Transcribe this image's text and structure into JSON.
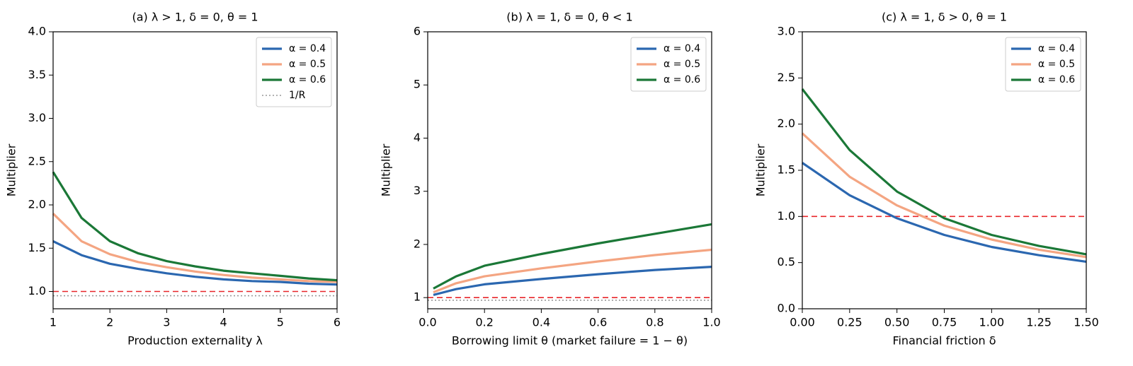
{
  "chart_data": [
    {
      "type": "line",
      "title": "(a) λ > 1, δ = 0, θ = 1",
      "x_label": "Production externality λ",
      "y_label": "Multiplier",
      "x": [
        1,
        1.5,
        2,
        2.5,
        3,
        3.5,
        4,
        4.5,
        5,
        5.5,
        6
      ],
      "series": [
        {
          "name": "α = 0.4",
          "color": "#2b67b0",
          "values": [
            1.58,
            1.42,
            1.32,
            1.26,
            1.21,
            1.17,
            1.14,
            1.12,
            1.11,
            1.09,
            1.08
          ]
        },
        {
          "name": "α = 0.5",
          "color": "#f4a582",
          "values": [
            1.9,
            1.58,
            1.43,
            1.34,
            1.28,
            1.23,
            1.19,
            1.16,
            1.14,
            1.12,
            1.11
          ]
        },
        {
          "name": "α = 0.6",
          "color": "#1b7837",
          "values": [
            2.38,
            1.85,
            1.58,
            1.44,
            1.35,
            1.29,
            1.24,
            1.21,
            1.18,
            1.15,
            1.13
          ]
        },
        {
          "name": "1/R",
          "color": "#999999",
          "style": "dotted",
          "values": [
            0.95,
            0.95,
            0.95,
            0.95,
            0.95,
            0.95,
            0.95,
            0.95,
            0.95,
            0.95,
            0.95
          ]
        }
      ],
      "hlines": [
        {
          "y": 1,
          "color": "#e8262a",
          "style": "dashed"
        }
      ],
      "xlim": [
        1,
        6
      ],
      "xticks": [
        1,
        2,
        3,
        4,
        5,
        6
      ],
      "ylim": [
        0.8,
        4
      ],
      "yticks": [
        {
          "value": 1,
          "label": "1.0"
        },
        1.5,
        {
          "value": 2,
          "label": "2.0"
        },
        2.5,
        {
          "value": 3,
          "label": "3.0"
        },
        3.5,
        {
          "value": 4,
          "label": "4.0"
        }
      ],
      "legend": "upper right"
    },
    {
      "type": "line",
      "title": "(b) λ = 1, δ = 0, θ < 1",
      "x_label": "Borrowing limit θ  (market failure = 1 − θ)",
      "y_label": "Multiplier",
      "x": [
        0.02,
        0.1,
        0.2,
        0.4,
        0.6,
        0.8,
        1.0
      ],
      "series": [
        {
          "name": "α = 0.4",
          "color": "#2b67b0",
          "values": [
            1.05,
            1.16,
            1.25,
            1.35,
            1.44,
            1.52,
            1.58
          ]
        },
        {
          "name": "α = 0.5",
          "color": "#f4a582",
          "values": [
            1.1,
            1.27,
            1.4,
            1.55,
            1.68,
            1.8,
            1.9
          ]
        },
        {
          "name": "α = 0.6",
          "color": "#1b7837",
          "values": [
            1.17,
            1.4,
            1.6,
            1.82,
            2.02,
            2.2,
            2.38
          ]
        }
      ],
      "hlines": [
        {
          "y": 1,
          "color": "#e8262a",
          "style": "dashed"
        },
        {
          "y": 0.95,
          "color": "#999999",
          "style": "dotted"
        }
      ],
      "xlim": [
        0,
        1
      ],
      "xticks": [
        {
          "value": 0,
          "label": "0.0"
        },
        0.2,
        0.4,
        0.6,
        0.8,
        {
          "value": 1,
          "label": "1.0"
        }
      ],
      "ylim": [
        0.79,
        6
      ],
      "yticks": [
        1,
        2,
        3,
        4,
        5,
        6
      ],
      "legend": "upper right"
    },
    {
      "type": "line",
      "title": "(c) λ = 1, δ > 0, θ = 1",
      "x_label": "Financial friction δ",
      "y_label": "Multiplier",
      "x": [
        0,
        0.25,
        0.5,
        0.75,
        1.0,
        1.25,
        1.5
      ],
      "series": [
        {
          "name": "α = 0.4",
          "color": "#2b67b0",
          "values": [
            1.58,
            1.23,
            0.98,
            0.8,
            0.67,
            0.58,
            0.51
          ]
        },
        {
          "name": "α = 0.5",
          "color": "#f4a582",
          "values": [
            1.9,
            1.43,
            1.12,
            0.9,
            0.75,
            0.64,
            0.56
          ]
        },
        {
          "name": "α = 0.6",
          "color": "#1b7837",
          "values": [
            2.38,
            1.72,
            1.27,
            0.98,
            0.8,
            0.68,
            0.59
          ]
        }
      ],
      "hlines": [
        {
          "y": 1,
          "color": "#e8262a",
          "style": "dashed"
        }
      ],
      "xlim": [
        0,
        1.5
      ],
      "xticks": [
        {
          "value": 0,
          "label": "0.00"
        },
        0.25,
        {
          "value": 0.5,
          "label": "0.50"
        },
        0.75,
        {
          "value": 1,
          "label": "1.00"
        },
        1.25,
        {
          "value": 1.5,
          "label": "1.50"
        }
      ],
      "ylim": [
        0,
        3
      ],
      "yticks": [
        {
          "value": 0,
          "label": "0.0"
        },
        0.5,
        {
          "value": 1,
          "label": "1.0"
        },
        1.5,
        {
          "value": 2,
          "label": "2.0"
        },
        2.5,
        {
          "value": 3,
          "label": "3.0"
        }
      ],
      "legend": "upper right"
    }
  ]
}
